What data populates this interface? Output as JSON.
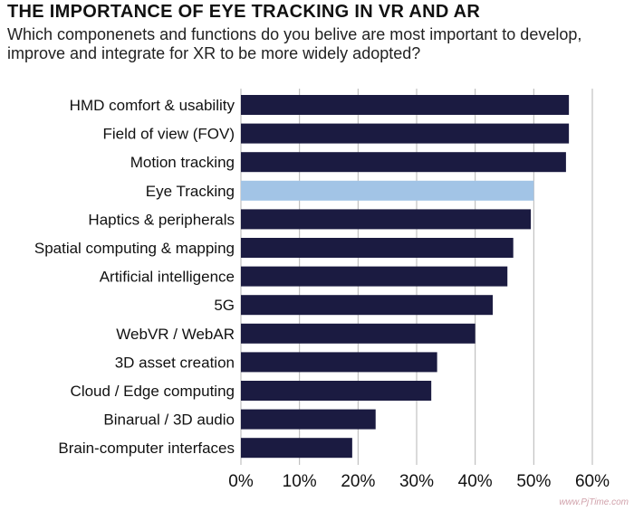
{
  "title": "THE IMPORTANCE OF EYE TRACKING IN VR AND AR",
  "subtitle": "Which componenets and functions do you belive are most important to develop, improve and integrate for XR to be more widely adopted?",
  "watermark": "www.PjTime.com",
  "colors": {
    "bar": "#1b1b41",
    "highlight": "#a2c4e6",
    "grid": "#b5b5b5",
    "text": "#111111"
  },
  "chart_data": {
    "type": "bar",
    "orientation": "horizontal",
    "title": "THE IMPORTANCE OF EYE TRACKING IN VR AND AR",
    "subtitle": "Which componenets and functions do you belive are most important to develop, improve and integrate for XR to be more widely adopted?",
    "categories": [
      "HMD comfort & usability",
      "Field of view (FOV)",
      "Motion tracking",
      "Eye Tracking",
      "Haptics & peripherals",
      "Spatial computing & mapping",
      "Artificial intelligence",
      "5G",
      "WebVR / WebAR",
      "3D asset creation",
      "Cloud / Edge computing",
      "Binarual / 3D audio",
      "Brain-computer interfaces"
    ],
    "values": [
      56,
      56,
      55.5,
      50,
      49.5,
      46.5,
      45.5,
      43,
      40,
      33.5,
      32.5,
      23,
      19
    ],
    "highlight_index": 3,
    "xlim": [
      0,
      60
    ],
    "xticks": [
      "0%",
      "10%",
      "20%",
      "30%",
      "40%",
      "50%",
      "60%"
    ],
    "tick_values": [
      0,
      10,
      20,
      30,
      40,
      50,
      60
    ],
    "xlabel": "",
    "ylabel": "",
    "grid": "vertical"
  }
}
